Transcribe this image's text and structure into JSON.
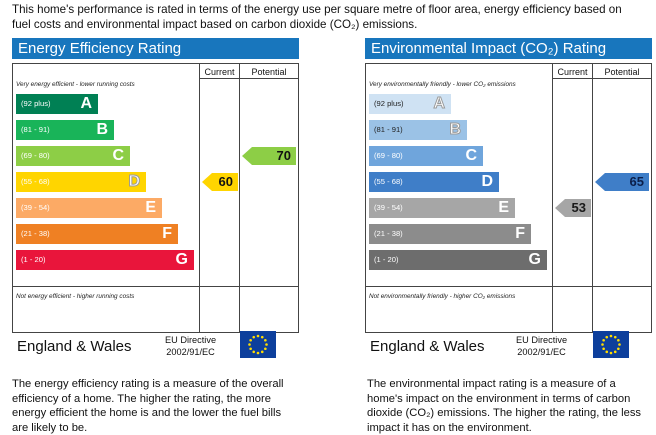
{
  "intro_text": "This home's performance is rated in terms of the energy use per square metre of floor area, energy efficiency based on fuel costs and environmental impact based on carbon dioxide (CO₂) emissions.",
  "chart_data": [
    {
      "type": "bar",
      "title": "Energy Efficiency Rating",
      "column_headers": [
        "Current",
        "Potential"
      ],
      "top_note": "Very energy efficient - lower running costs",
      "bottom_note": "Not energy efficient - higher running costs",
      "bands": [
        {
          "range": "(92 plus)",
          "letter": "A",
          "color": "#008054"
        },
        {
          "range": "(81 - 91)",
          "letter": "B",
          "color": "#19b459"
        },
        {
          "range": "(69 - 80)",
          "letter": "C",
          "color": "#8dce46"
        },
        {
          "range": "(55 - 68)",
          "letter": "D",
          "color": "#ffd500"
        },
        {
          "range": "(39 - 54)",
          "letter": "E",
          "color": "#fcaa65"
        },
        {
          "range": "(21 - 38)",
          "letter": "F",
          "color": "#ef8023"
        },
        {
          "range": "(1 - 20)",
          "letter": "G",
          "color": "#e9153b"
        }
      ],
      "current": {
        "value": 60,
        "band": "D",
        "color": "#ffd500"
      },
      "potential": {
        "value": 70,
        "band": "C",
        "color": "#8dce46"
      },
      "footer_region": "England & Wales",
      "directive_line1": "EU Directive",
      "directive_line2": "2002/91/EC",
      "description": "The energy efficiency rating is a measure of the overall efficiency of a home. The higher the rating, the more energy efficient the home is and the lower the fuel bills are likely to be."
    },
    {
      "type": "bar",
      "title": "Environmental Impact (CO₂) Rating",
      "column_headers": [
        "Current",
        "Potential"
      ],
      "top_note": "Very environmentally friendly - lower CO₂ emissions",
      "bottom_note": "Not environmentally friendly - higher CO₂ emissions",
      "bands": [
        {
          "range": "(92 plus)",
          "letter": "A",
          "color": "#cfe2f3"
        },
        {
          "range": "(81 - 91)",
          "letter": "B",
          "color": "#9bc2e6"
        },
        {
          "range": "(69 - 80)",
          "letter": "C",
          "color": "#6fa5dc"
        },
        {
          "range": "(55 - 68)",
          "letter": "D",
          "color": "#3f7ec8"
        },
        {
          "range": "(39 - 54)",
          "letter": "E",
          "color": "#a6a6a6"
        },
        {
          "range": "(21 - 38)",
          "letter": "F",
          "color": "#8c8c8c"
        },
        {
          "range": "(1 - 20)",
          "letter": "G",
          "color": "#6d6d6d"
        }
      ],
      "current": {
        "value": 53,
        "band": "E",
        "color": "#a6a6a6"
      },
      "potential": {
        "value": 65,
        "band": "D",
        "color": "#3f7ec8"
      },
      "footer_region": "England & Wales",
      "directive_line1": "EU Directive",
      "directive_line2": "2002/91/EC",
      "description": "The environmental impact rating is a measure of a home's impact on the environment in terms of carbon dioxide (CO₂) emissions. The higher the rating, the less impact it has on the environment."
    }
  ]
}
